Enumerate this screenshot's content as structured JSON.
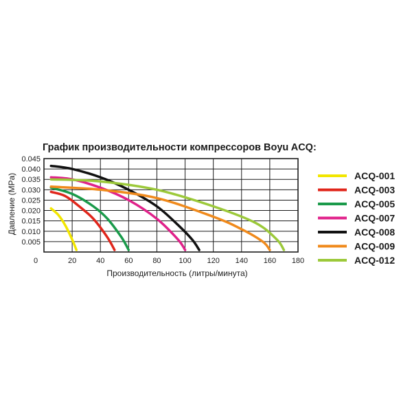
{
  "chart_data": {
    "type": "line",
    "title": "График производительности компрессоров Boyu ACQ:",
    "xlabel": "Производительность (литры/минута)",
    "ylabel": "Давление (MPa)",
    "xlim": [
      0,
      180
    ],
    "ylim": [
      0,
      0.045
    ],
    "x_ticks": [
      "0",
      "20",
      "40",
      "60",
      "80",
      "100",
      "120",
      "140",
      "160",
      "180"
    ],
    "y_ticks": [
      "0.005",
      "0.010",
      "0.015",
      "0.020",
      "0.025",
      "0.030",
      "0.035",
      "0.040",
      "0.045"
    ],
    "grid": true,
    "legend_position": "right",
    "series": [
      {
        "name": "ACQ-001",
        "color": "#f2e600",
        "x": [
          5,
          10,
          15,
          20,
          23
        ],
        "y": [
          0.021,
          0.018,
          0.013,
          0.006,
          0.001
        ]
      },
      {
        "name": "ACQ-003",
        "color": "#e0261b",
        "x": [
          5,
          15,
          25,
          35,
          45,
          50
        ],
        "y": [
          0.029,
          0.027,
          0.022,
          0.016,
          0.007,
          0.001
        ]
      },
      {
        "name": "ACQ-005",
        "color": "#1a9a4a",
        "x": [
          5,
          20,
          35,
          45,
          55,
          60
        ],
        "y": [
          0.031,
          0.028,
          0.022,
          0.016,
          0.007,
          0.001
        ]
      },
      {
        "name": "ACQ-007",
        "color": "#e0218a",
        "x": [
          5,
          20,
          40,
          60,
          80,
          95,
          100
        ],
        "y": [
          0.036,
          0.035,
          0.031,
          0.025,
          0.016,
          0.006,
          0.001
        ]
      },
      {
        "name": "ACQ-008",
        "color": "#111111",
        "x": [
          5,
          20,
          40,
          60,
          80,
          95,
          105,
          110
        ],
        "y": [
          0.0415,
          0.04,
          0.036,
          0.03,
          0.022,
          0.013,
          0.006,
          0.001
        ]
      },
      {
        "name": "ACQ-009",
        "color": "#f08a1c",
        "x": [
          5,
          40,
          80,
          120,
          140,
          155,
          160
        ],
        "y": [
          0.0315,
          0.03,
          0.026,
          0.017,
          0.011,
          0.005,
          0.001
        ]
      },
      {
        "name": "ACQ-012",
        "color": "#9cc93a",
        "x": [
          5,
          40,
          80,
          120,
          150,
          165,
          170
        ],
        "y": [
          0.035,
          0.034,
          0.03,
          0.022,
          0.014,
          0.006,
          0.001
        ]
      }
    ]
  }
}
